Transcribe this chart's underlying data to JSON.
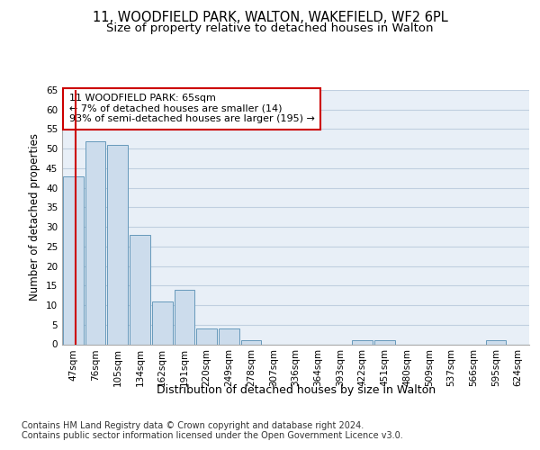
{
  "title_line1": "11, WOODFIELD PARK, WALTON, WAKEFIELD, WF2 6PL",
  "title_line2": "Size of property relative to detached houses in Walton",
  "xlabel": "Distribution of detached houses by size in Walton",
  "ylabel": "Number of detached properties",
  "bins": [
    "47sqm",
    "76sqm",
    "105sqm",
    "134sqm",
    "162sqm",
    "191sqm",
    "220sqm",
    "249sqm",
    "278sqm",
    "307sqm",
    "336sqm",
    "364sqm",
    "393sqm",
    "422sqm",
    "451sqm",
    "480sqm",
    "509sqm",
    "537sqm",
    "566sqm",
    "595sqm",
    "624sqm"
  ],
  "values": [
    43,
    52,
    51,
    28,
    11,
    14,
    4,
    4,
    1,
    0,
    0,
    0,
    0,
    1,
    1,
    0,
    0,
    0,
    0,
    1,
    0
  ],
  "bar_color": "#ccdcec",
  "bar_edge_color": "#6699bb",
  "highlight_line_color": "#cc0000",
  "annotation_text": "11 WOODFIELD PARK: 65sqm\n← 7% of detached houses are smaller (14)\n93% of semi-detached houses are larger (195) →",
  "annotation_box_color": "#ffffff",
  "annotation_box_edge_color": "#cc0000",
  "ylim": [
    0,
    65
  ],
  "yticks": [
    0,
    5,
    10,
    15,
    20,
    25,
    30,
    35,
    40,
    45,
    50,
    55,
    60,
    65
  ],
  "grid_color": "#c0cfe0",
  "bg_color": "#e8eff7",
  "footer_line1": "Contains HM Land Registry data © Crown copyright and database right 2024.",
  "footer_line2": "Contains public sector information licensed under the Open Government Licence v3.0.",
  "title_fontsize": 10.5,
  "subtitle_fontsize": 9.5,
  "ylabel_fontsize": 8.5,
  "xlabel_fontsize": 9,
  "tick_fontsize": 7.5,
  "annotation_fontsize": 8,
  "footer_fontsize": 7
}
